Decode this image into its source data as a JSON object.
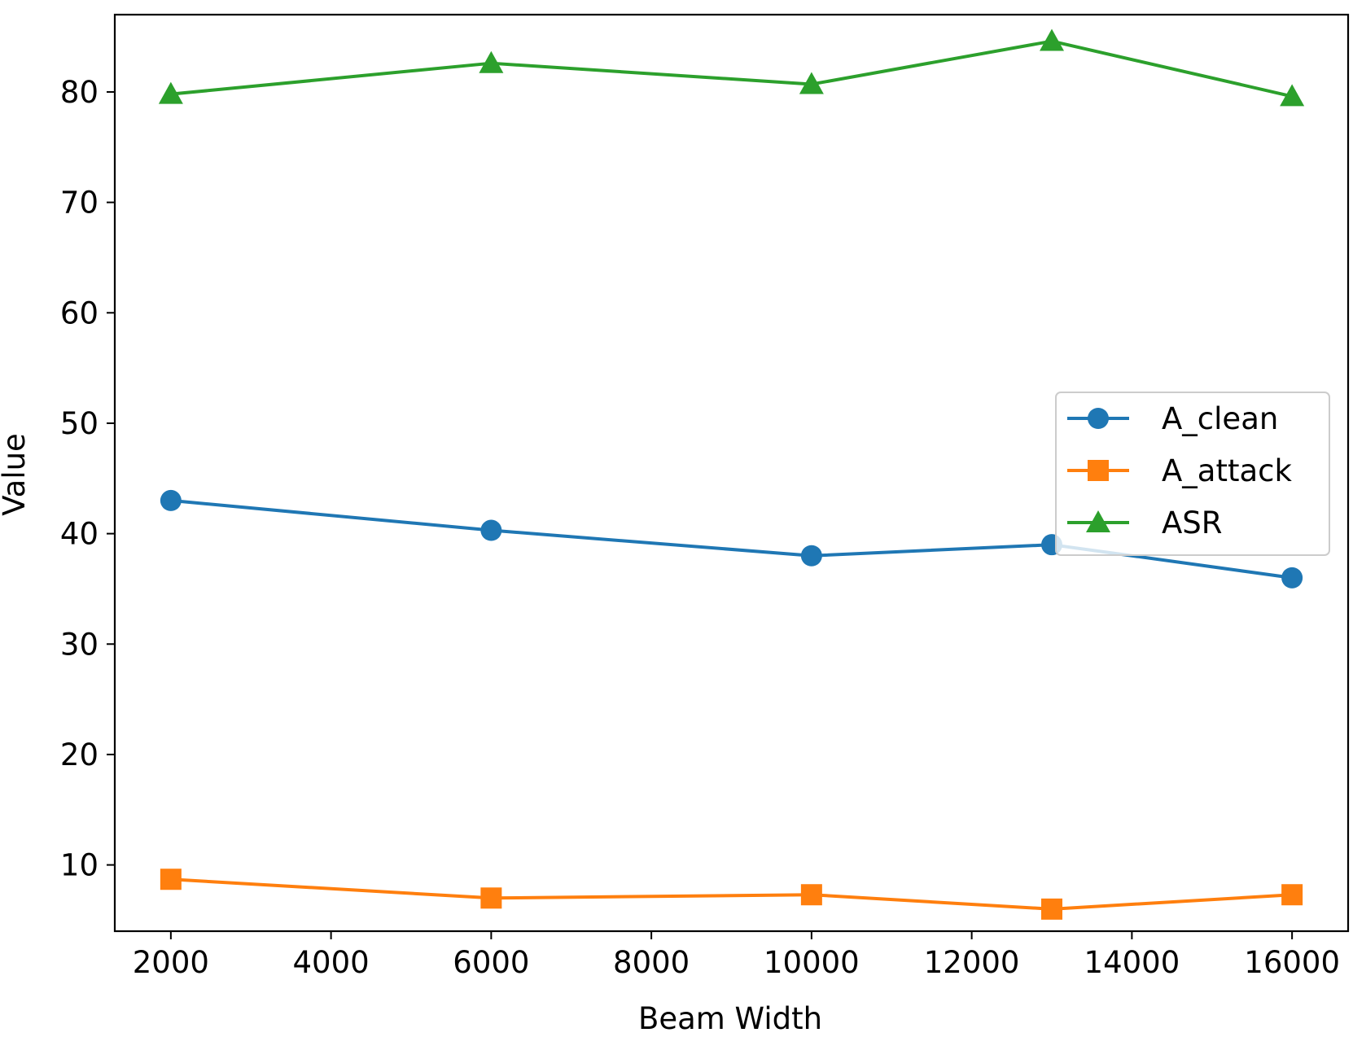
{
  "chart_data": {
    "type": "line",
    "title": "",
    "xlabel": "Beam Width",
    "ylabel": "Value",
    "x": [
      2000,
      6000,
      10000,
      13000,
      16000
    ],
    "xlim": [
      1300,
      16700
    ],
    "ylim": [
      4.0,
      87.0
    ],
    "xticks": [
      2000,
      4000,
      6000,
      8000,
      10000,
      12000,
      14000,
      16000
    ],
    "yticks": [
      10,
      20,
      30,
      40,
      50,
      60,
      70,
      80
    ],
    "grid": false,
    "legend_position": "center-right",
    "series": [
      {
        "name": "A_clean",
        "values": [
          43.0,
          40.3,
          38.0,
          39.0,
          36.0
        ],
        "color": "#1f77b4",
        "marker": "circle"
      },
      {
        "name": "A_attack",
        "values": [
          8.7,
          7.0,
          7.3,
          6.0,
          7.3
        ],
        "color": "#ff7f0e",
        "marker": "square"
      },
      {
        "name": "ASR",
        "values": [
          79.8,
          82.6,
          80.7,
          84.6,
          79.6
        ],
        "color": "#2ca02c",
        "marker": "triangle"
      }
    ]
  }
}
